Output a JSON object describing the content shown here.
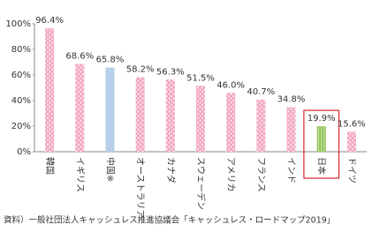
{
  "chart_data": {
    "type": "bar",
    "categories": [
      "韓国",
      "イギリス",
      "中国※",
      "オーストラリア",
      "カナダ",
      "スウェーデン",
      "アメリカ",
      "フランス",
      "インド",
      "日本",
      "ドイツ"
    ],
    "values": [
      96.4,
      68.6,
      65.8,
      58.2,
      56.3,
      51.5,
      46.0,
      40.7,
      34.8,
      19.9,
      15.6
    ],
    "value_labels": [
      "96.4%",
      "68.6%",
      "65.8%",
      "58.2%",
      "56.3%",
      "51.5%",
      "46.0%",
      "40.7%",
      "34.8%",
      "19.9%",
      "15.6%"
    ],
    "colors": [
      "#f3a9c3",
      "#f3a9c3",
      "#b7cfe9",
      "#f3a9c3",
      "#f3a9c3",
      "#f3a9c3",
      "#f3a9c3",
      "#f3a9c3",
      "#f3a9c3",
      "#8cc152",
      "#f3a9c3"
    ],
    "patterns": [
      "dots",
      "dots",
      "none",
      "dots",
      "dots",
      "dots",
      "dots",
      "dots",
      "dots",
      "stripes",
      "dots"
    ],
    "highlight": "日本",
    "highlight_color": "#d7262f",
    "ylim": [
      0,
      100
    ],
    "yticks": [
      {
        "value": 0,
        "label": "0%"
      },
      {
        "value": 20,
        "label": "20%"
      },
      {
        "value": 40,
        "label": "40%"
      },
      {
        "value": 60,
        "label": "60%"
      },
      {
        "value": 80,
        "label": "80%"
      },
      {
        "value": 100,
        "label": "100%"
      }
    ],
    "source": "資料）一般社団法人キャッシュレス推進協議会「キャッシュレス・ロードマップ2019」"
  }
}
